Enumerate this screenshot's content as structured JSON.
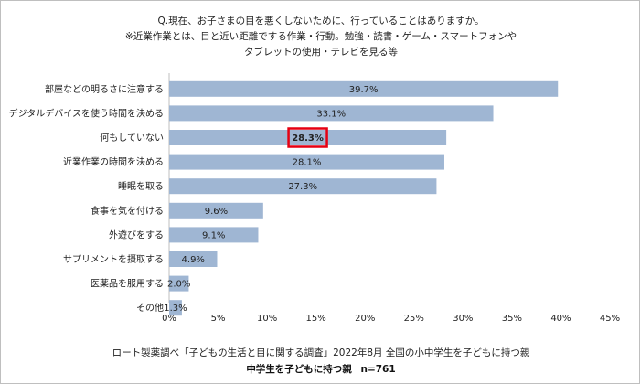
{
  "question": {
    "line1": "Q.現在、お子さまの目を悪くしないために、行っていることはありますか。",
    "line2": "※近業作業とは、目と近い距離でする作業・行動。勉強・読書・ゲーム・スマートフォンや",
    "line3": "タブレットの使用・テレビを見る等"
  },
  "footer": {
    "source": "ロート製薬調べ「子どもの生活と目に関する調査」2022年8月 全国の小中学生を子どもに持つ親",
    "target": "中学生を子どもに持つ親",
    "n": "n=761"
  },
  "chart_data": {
    "type": "bar",
    "orientation": "horizontal",
    "categories": [
      "部屋などの明るさに注意する",
      "デジタルデバイスを使う時間を決める",
      "何もしていない",
      "近業作業の時間を決める",
      "睡眠を取る",
      "食事を気を付ける",
      "外遊びをする",
      "サプリメントを摂取する",
      "医薬品を服用する",
      "その他"
    ],
    "values": [
      39.7,
      33.1,
      28.3,
      28.1,
      27.3,
      9.6,
      9.1,
      4.9,
      2.0,
      1.3
    ],
    "value_labels": [
      "39.7%",
      "33.1%",
      "28.3%",
      "28.1%",
      "27.3%",
      "9.6%",
      "9.1%",
      "4.9%",
      "2.0%",
      "1.3%"
    ],
    "highlight_index": 2,
    "xlim": [
      0,
      45
    ],
    "xticks": [
      "0%",
      "5%",
      "10%",
      "15%",
      "20%",
      "25%",
      "30%",
      "35%",
      "40%",
      "45%"
    ],
    "bar_color": "#9fb6d3",
    "highlight_color": "#e60012",
    "grid": false
  }
}
